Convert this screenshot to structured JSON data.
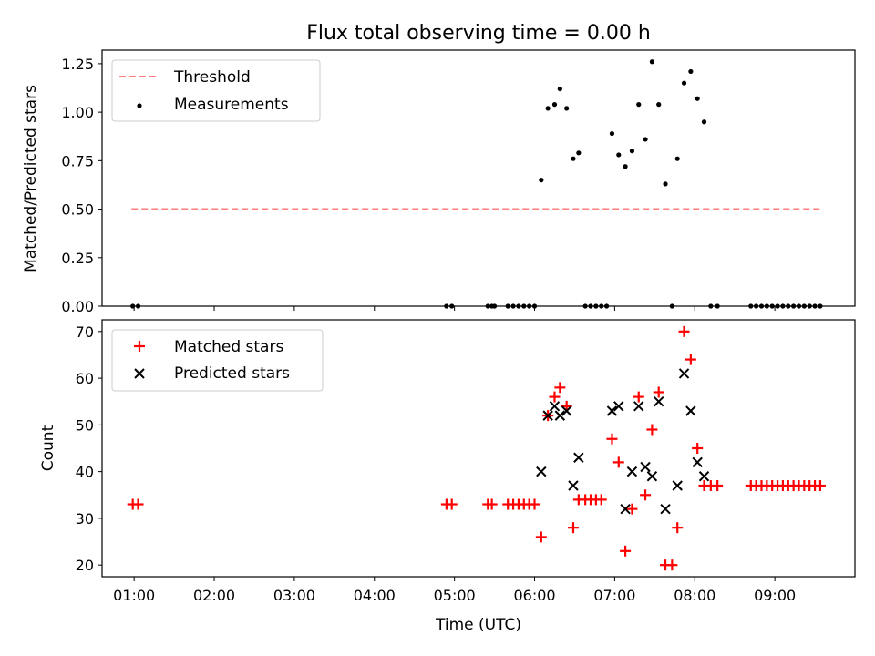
{
  "figure": {
    "title": "Flux total observing time = 0.00 h"
  },
  "chart_data": [
    {
      "type": "scatter",
      "panel": "top",
      "ylabel": "Matched/Predicted stars",
      "xlabel": "",
      "xlim": [
        "00:36",
        "10:00"
      ],
      "ylim": [
        0,
        1.32
      ],
      "yticks": [
        0,
        0.25,
        0.5,
        0.75,
        1.0,
        1.25
      ],
      "ytick_labels": [
        "0.00",
        "0.25",
        "0.50",
        "0.75",
        "1.00",
        "1.25"
      ],
      "grid": false,
      "legend_position": "upper-left",
      "threshold": {
        "name": "Threshold",
        "value": 0.5,
        "x_range": [
          "00:58",
          "09:35"
        ],
        "color": "#ff7f7f",
        "style": "dashed"
      },
      "series": [
        {
          "name": "Measurements",
          "marker": "dot",
          "color": "#000000",
          "points": [
            [
              "00:59",
              0
            ],
            [
              "01:03",
              0
            ],
            [
              "04:54",
              0
            ],
            [
              "04:58",
              0
            ],
            [
              "05:25",
              0
            ],
            [
              "05:28",
              0
            ],
            [
              "05:30",
              0
            ],
            [
              "05:40",
              0
            ],
            [
              "05:44",
              0
            ],
            [
              "05:48",
              0
            ],
            [
              "05:52",
              0
            ],
            [
              "05:56",
              0
            ],
            [
              "06:00",
              0
            ],
            [
              "06:05",
              0.65
            ],
            [
              "06:10",
              1.02
            ],
            [
              "06:15",
              1.04
            ],
            [
              "06:19",
              1.12
            ],
            [
              "06:24",
              1.02
            ],
            [
              "06:29",
              0.76
            ],
            [
              "06:33",
              0.79
            ],
            [
              "06:38",
              0
            ],
            [
              "06:42",
              0
            ],
            [
              "06:46",
              0
            ],
            [
              "06:50",
              0
            ],
            [
              "06:54",
              0
            ],
            [
              "06:58",
              0.89
            ],
            [
              "07:03",
              0.78
            ],
            [
              "07:08",
              0.72
            ],
            [
              "07:13",
              0.8
            ],
            [
              "07:18",
              1.04
            ],
            [
              "07:23",
              0.86
            ],
            [
              "07:28",
              1.26
            ],
            [
              "07:33",
              1.04
            ],
            [
              "07:38",
              0.63
            ],
            [
              "07:43",
              0
            ],
            [
              "07:47",
              0.76
            ],
            [
              "07:52",
              1.15
            ],
            [
              "07:57",
              1.21
            ],
            [
              "08:02",
              1.07
            ],
            [
              "08:07",
              0.95
            ],
            [
              "08:12",
              0
            ],
            [
              "08:17",
              0
            ],
            [
              "08:42",
              0
            ],
            [
              "08:46",
              0
            ],
            [
              "08:50",
              0
            ],
            [
              "08:54",
              0
            ],
            [
              "08:58",
              0
            ],
            [
              "09:02",
              0
            ],
            [
              "09:06",
              0
            ],
            [
              "09:10",
              0
            ],
            [
              "09:14",
              0
            ],
            [
              "09:18",
              0
            ],
            [
              "09:22",
              0
            ],
            [
              "09:26",
              0
            ],
            [
              "09:30",
              0
            ],
            [
              "09:34",
              0
            ]
          ]
        }
      ]
    },
    {
      "type": "scatter",
      "panel": "bottom",
      "ylabel": "Count",
      "xlabel": "Time (UTC)",
      "xlim": [
        "00:36",
        "10:00"
      ],
      "ylim": [
        17.5,
        72.5
      ],
      "yticks": [
        20,
        30,
        40,
        50,
        60,
        70
      ],
      "xticks": [
        "01:00",
        "02:00",
        "03:00",
        "04:00",
        "05:00",
        "06:00",
        "07:00",
        "08:00",
        "09:00"
      ],
      "grid": false,
      "legend_position": "upper-left",
      "series": [
        {
          "name": "Matched stars",
          "marker": "plus",
          "color": "#ff0000",
          "points": [
            [
              "00:59",
              33
            ],
            [
              "01:03",
              33
            ],
            [
              "04:54",
              33
            ],
            [
              "04:58",
              33
            ],
            [
              "05:25",
              33
            ],
            [
              "05:28",
              33
            ],
            [
              "05:40",
              33
            ],
            [
              "05:44",
              33
            ],
            [
              "05:48",
              33
            ],
            [
              "05:52",
              33
            ],
            [
              "05:56",
              33
            ],
            [
              "06:00",
              33
            ],
            [
              "06:05",
              26
            ],
            [
              "06:10",
              52
            ],
            [
              "06:15",
              56
            ],
            [
              "06:19",
              58
            ],
            [
              "06:24",
              54
            ],
            [
              "06:29",
              28
            ],
            [
              "06:33",
              34
            ],
            [
              "06:38",
              34
            ],
            [
              "06:42",
              34
            ],
            [
              "06:46",
              34
            ],
            [
              "06:50",
              34
            ],
            [
              "06:58",
              47
            ],
            [
              "07:03",
              42
            ],
            [
              "07:08",
              23
            ],
            [
              "07:13",
              32
            ],
            [
              "07:18",
              56
            ],
            [
              "07:23",
              35
            ],
            [
              "07:28",
              49
            ],
            [
              "07:33",
              57
            ],
            [
              "07:38",
              20
            ],
            [
              "07:43",
              20
            ],
            [
              "07:47",
              28
            ],
            [
              "07:52",
              70
            ],
            [
              "07:57",
              64
            ],
            [
              "08:02",
              45
            ],
            [
              "08:07",
              37
            ],
            [
              "08:12",
              37
            ],
            [
              "08:17",
              37
            ],
            [
              "08:42",
              37
            ],
            [
              "08:46",
              37
            ],
            [
              "08:50",
              37
            ],
            [
              "08:54",
              37
            ],
            [
              "08:58",
              37
            ],
            [
              "09:02",
              37
            ],
            [
              "09:06",
              37
            ],
            [
              "09:10",
              37
            ],
            [
              "09:14",
              37
            ],
            [
              "09:18",
              37
            ],
            [
              "09:22",
              37
            ],
            [
              "09:26",
              37
            ],
            [
              "09:30",
              37
            ],
            [
              "09:34",
              37
            ]
          ]
        },
        {
          "name": "Predicted stars",
          "marker": "x",
          "color": "#000000",
          "points": [
            [
              "06:05",
              40
            ],
            [
              "06:10",
              52
            ],
            [
              "06:15",
              54
            ],
            [
              "06:19",
              52
            ],
            [
              "06:24",
              53
            ],
            [
              "06:29",
              37
            ],
            [
              "06:33",
              43
            ],
            [
              "06:58",
              53
            ],
            [
              "07:03",
              54
            ],
            [
              "07:08",
              32
            ],
            [
              "07:13",
              40
            ],
            [
              "07:18",
              54
            ],
            [
              "07:23",
              41
            ],
            [
              "07:28",
              39
            ],
            [
              "07:33",
              55
            ],
            [
              "07:38",
              32
            ],
            [
              "07:47",
              37
            ],
            [
              "07:52",
              61
            ],
            [
              "07:57",
              53
            ],
            [
              "08:02",
              42
            ],
            [
              "08:07",
              39
            ]
          ]
        }
      ]
    }
  ]
}
